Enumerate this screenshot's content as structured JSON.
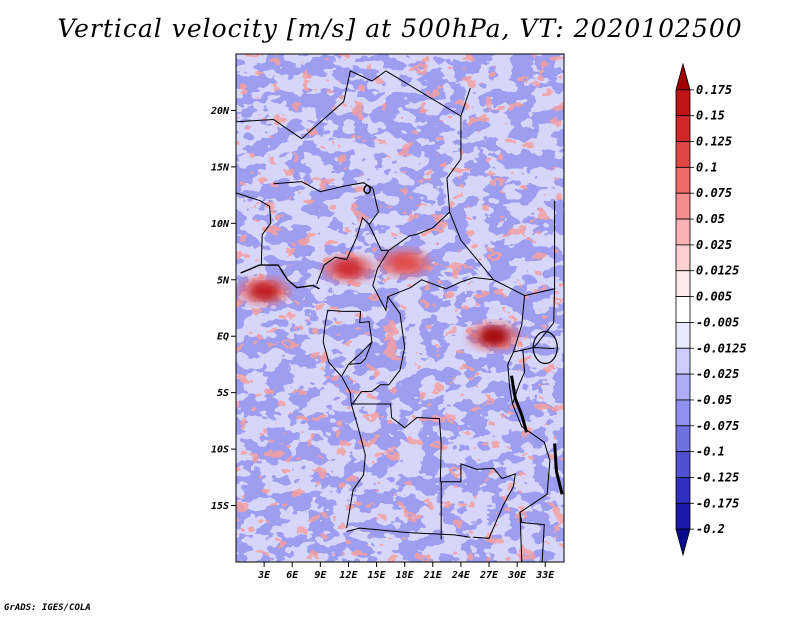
{
  "title": "Vertical velocity [m/s] at 500hPa, VT: 2020102500",
  "footer": "GrADS: IGES/COLA",
  "chart_data": {
    "type": "heatmap",
    "title": "Vertical velocity [m/s] at 500hPa, VT: 2020102500",
    "variable": "vertical velocity",
    "units": "m/s",
    "level": "500hPa",
    "valid_time": "2020102500",
    "lon_range": [
      0,
      35
    ],
    "lat_range": [
      -20,
      25
    ],
    "x_ticks": [
      {
        "value": 3,
        "label": "3E"
      },
      {
        "value": 6,
        "label": "6E"
      },
      {
        "value": 9,
        "label": "9E"
      },
      {
        "value": 12,
        "label": "12E"
      },
      {
        "value": 15,
        "label": "15E"
      },
      {
        "value": 18,
        "label": "18E"
      },
      {
        "value": 21,
        "label": "21E"
      },
      {
        "value": 24,
        "label": "24E"
      },
      {
        "value": 27,
        "label": "27E"
      },
      {
        "value": 30,
        "label": "30E"
      },
      {
        "value": 33,
        "label": "33E"
      }
    ],
    "y_ticks": [
      {
        "value": 20,
        "label": "20N"
      },
      {
        "value": 15,
        "label": "15N"
      },
      {
        "value": 10,
        "label": "10N"
      },
      {
        "value": 5,
        "label": "5N"
      },
      {
        "value": 0,
        "label": "EQ"
      },
      {
        "value": -5,
        "label": "5S"
      },
      {
        "value": -10,
        "label": "10S"
      },
      {
        "value": -15,
        "label": "15S"
      }
    ],
    "colorbar": {
      "levels": [
        "0.175",
        "0.15",
        "0.125",
        "0.1",
        "0.075",
        "0.05",
        "0.025",
        "0.0125",
        "0.005",
        "-0.005",
        "-0.0125",
        "-0.025",
        "-0.05",
        "-0.075",
        "-0.1",
        "-0.125",
        "-0.175",
        "-0.2"
      ],
      "colors": [
        "#a00000",
        "#be1616",
        "#d02828",
        "#e04646",
        "#ec6a6a",
        "#f48e8e",
        "#f8b2b2",
        "#fcd0d0",
        "#ffeaea",
        "#ffffff",
        "#e8e8ff",
        "#ccccff",
        "#aeaef8",
        "#9090f0",
        "#7070e0",
        "#5050d0",
        "#3030c0",
        "#1a1aa8",
        "#0a0a90"
      ]
    },
    "hotspots": [
      {
        "lon": 3,
        "lat": 4,
        "value": 0.15
      },
      {
        "lon": 12,
        "lat": 6,
        "value": 0.125
      },
      {
        "lon": 18,
        "lat": 6.5,
        "value": 0.1
      },
      {
        "lon": 27.5,
        "lat": 0,
        "value": 0.175
      }
    ]
  }
}
